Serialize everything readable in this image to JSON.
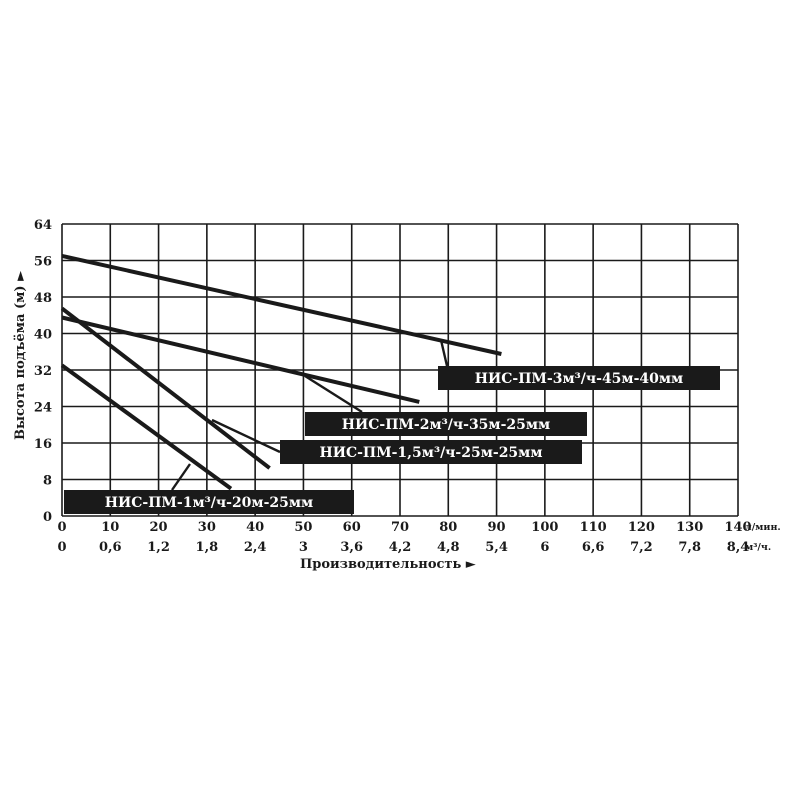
{
  "chart_data": {
    "type": "line",
    "title": "",
    "xlabel": "Производительность ►",
    "ylabel": "Высота подъёма (м) ►",
    "x_unit": "л/мин.",
    "x2_unit": "м³/ч.",
    "xlim": [
      0,
      140
    ],
    "ylim": [
      0,
      64
    ],
    "x_ticks": [
      "0",
      "10",
      "20",
      "30",
      "40",
      "50",
      "60",
      "70",
      "80",
      "90",
      "100",
      "110",
      "120",
      "130",
      "140"
    ],
    "x2_ticks": [
      "0",
      "0,6",
      "1,2",
      "1,8",
      "2,4",
      "3",
      "3,6",
      "4,2",
      "4,8",
      "5,4",
      "6",
      "6,6",
      "7,2",
      "7,8",
      "8,4"
    ],
    "y_ticks": [
      "0",
      "8",
      "16",
      "24",
      "32",
      "40",
      "48",
      "56",
      "64"
    ],
    "grid": true,
    "legend": "inline labels",
    "series": [
      {
        "name": "НИС-ПМ-3м³/ч-45м-40мм",
        "x": [
          0,
          91
        ],
        "y": [
          57,
          35.5
        ]
      },
      {
        "name": "НИС-ПМ-2м³/ч-35м-25мм",
        "x": [
          0,
          74
        ],
        "y": [
          43.5,
          25
        ]
      },
      {
        "name": "НИС-ПМ-1,5м³/ч-25м-25мм",
        "x": [
          0,
          43
        ],
        "y": [
          45.5,
          10.5
        ]
      },
      {
        "name": "НИС-ПМ-1м³/ч-20м-25мм",
        "x": [
          0,
          35
        ],
        "y": [
          33,
          6
        ]
      }
    ]
  }
}
